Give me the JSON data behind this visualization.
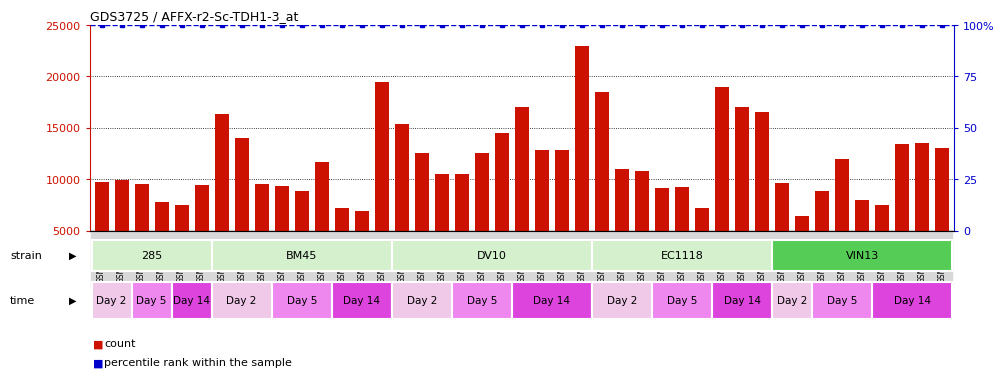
{
  "title": "GDS3725 / AFFX-r2-Sc-TDH1-3_at",
  "samples": [
    "GSM291115",
    "GSM291116",
    "GSM291117",
    "GSM291140",
    "GSM291141",
    "GSM291142",
    "GSM291000",
    "GSM291001",
    "GSM291462",
    "GSM291523",
    "GSM291524",
    "GSM291555",
    "GSM296856",
    "GSM296857",
    "GSM290992",
    "GSM290993",
    "GSM290989",
    "GSM290990",
    "GSM290991",
    "GSM291538",
    "GSM291539",
    "GSM291540",
    "GSM290994",
    "GSM290995",
    "GSM290996",
    "GSM291435",
    "GSM291439",
    "GSM291445",
    "GSM291554",
    "GSM296858",
    "GSM296859",
    "GSM290997",
    "GSM290998",
    "GSM290999",
    "GSM290901",
    "GSM290902",
    "GSM290903",
    "GSM291525",
    "GSM296860",
    "GSM296861",
    "GSM291002",
    "GSM291003",
    "GSM292045"
  ],
  "counts": [
    9700,
    9900,
    9500,
    7800,
    7500,
    9400,
    16300,
    14000,
    9500,
    9300,
    8800,
    11700,
    7200,
    6900,
    19500,
    15400,
    12500,
    10500,
    10500,
    12500,
    14500,
    17000,
    12800,
    12800,
    23000,
    18500,
    11000,
    10800,
    9100,
    9200,
    7200,
    19000,
    17000,
    16500,
    9600,
    6400,
    8800,
    12000,
    8000,
    7500,
    13400,
    13500,
    13000
  ],
  "strains": [
    {
      "name": "285",
      "start": 0,
      "end": 6,
      "color": "#d5f0cc"
    },
    {
      "name": "BM45",
      "start": 6,
      "end": 15,
      "color": "#d5f0cc"
    },
    {
      "name": "DV10",
      "start": 15,
      "end": 25,
      "color": "#d5f0cc"
    },
    {
      "name": "EC1118",
      "start": 25,
      "end": 34,
      "color": "#d5f0cc"
    },
    {
      "name": "VIN13",
      "start": 34,
      "end": 43,
      "color": "#55cc55"
    }
  ],
  "time_groups": [
    {
      "name": "Day 2",
      "start": 0,
      "end": 2,
      "color": "#f0c8e8"
    },
    {
      "name": "Day 5",
      "start": 2,
      "end": 4,
      "color": "#ee88ee"
    },
    {
      "name": "Day 14",
      "start": 4,
      "end": 6,
      "color": "#dd44dd"
    },
    {
      "name": "Day 2",
      "start": 6,
      "end": 9,
      "color": "#f0c8e8"
    },
    {
      "name": "Day 5",
      "start": 9,
      "end": 12,
      "color": "#ee88ee"
    },
    {
      "name": "Day 14",
      "start": 12,
      "end": 15,
      "color": "#dd44dd"
    },
    {
      "name": "Day 2",
      "start": 15,
      "end": 18,
      "color": "#f0c8e8"
    },
    {
      "name": "Day 5",
      "start": 18,
      "end": 21,
      "color": "#ee88ee"
    },
    {
      "name": "Day 14",
      "start": 21,
      "end": 25,
      "color": "#dd44dd"
    },
    {
      "name": "Day 2",
      "start": 25,
      "end": 28,
      "color": "#f0c8e8"
    },
    {
      "name": "Day 5",
      "start": 28,
      "end": 31,
      "color": "#ee88ee"
    },
    {
      "name": "Day 14",
      "start": 31,
      "end": 34,
      "color": "#dd44dd"
    },
    {
      "name": "Day 2",
      "start": 34,
      "end": 36,
      "color": "#f0c8e8"
    },
    {
      "name": "Day 5",
      "start": 36,
      "end": 39,
      "color": "#ee88ee"
    },
    {
      "name": "Day 14",
      "start": 39,
      "end": 43,
      "color": "#dd44dd"
    }
  ],
  "bar_color": "#cc1100",
  "percentile_color": "#0000cc",
  "plot_bg": "#ffffff",
  "xtick_bg": "#d8d8d8",
  "ylim": [
    5000,
    25000
  ],
  "yticks_left": [
    5000,
    10000,
    15000,
    20000,
    25000
  ],
  "yticks_right": [
    0,
    25,
    50,
    75,
    100
  ],
  "dotted_lines": [
    10000,
    15000,
    20000
  ],
  "title_fontsize": 9,
  "bar_label_fontsize": 5.5,
  "axis_label_fontsize": 8,
  "legend_fontsize": 8
}
